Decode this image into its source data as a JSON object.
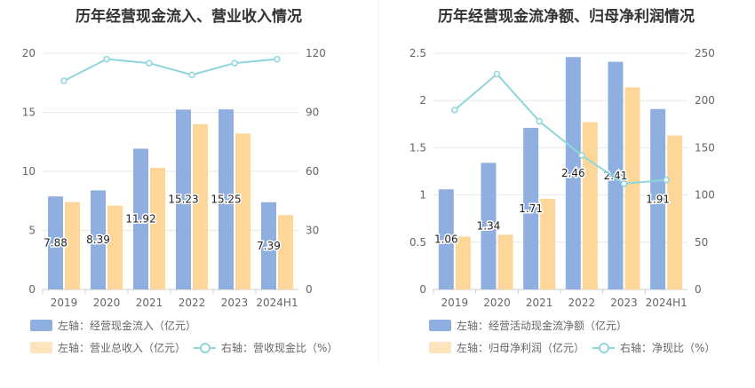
{
  "colors": {
    "bar1": "#8eafe0",
    "bar2": "#fdd79a",
    "line": "#8fd6dc",
    "grid": "#e8e8e8"
  },
  "chart_data": [
    {
      "type": "bar",
      "title": "历年经营现金流入、营业收入情况",
      "categories": [
        "2019",
        "2020",
        "2021",
        "2022",
        "2023",
        "2024H1"
      ],
      "series": [
        {
          "name": "左轴：经营现金流入（亿元）",
          "axis": "left",
          "type": "bar",
          "values": [
            7.88,
            8.39,
            11.92,
            15.23,
            15.25,
            7.39
          ],
          "labels": [
            "7.88",
            "8.39",
            "11.92",
            "15.23",
            "15.25",
            "7.39"
          ]
        },
        {
          "name": "左轴：营业总收入（亿元）",
          "axis": "left",
          "type": "bar",
          "values": [
            7.4,
            7.1,
            10.3,
            14.0,
            13.2,
            6.3
          ]
        },
        {
          "name": "右轴：营收现金比（%）",
          "axis": "right",
          "type": "line",
          "values": [
            106,
            117,
            115,
            109,
            115,
            117
          ]
        }
      ],
      "left_axis": {
        "min": 0,
        "max": 20,
        "ticks": [
          "0",
          "5",
          "10",
          "15",
          "20"
        ]
      },
      "right_axis": {
        "min": 0,
        "max": 120,
        "ticks": [
          "0",
          "30",
          "60",
          "90",
          "120"
        ]
      },
      "grid": true,
      "legend": "bottom"
    },
    {
      "type": "bar",
      "title": "历年经营现金流净额、归母净利润情况",
      "categories": [
        "2019",
        "2020",
        "2021",
        "2022",
        "2023",
        "2024H1"
      ],
      "series": [
        {
          "name": "左轴：经营活动现金流净额（亿元）",
          "axis": "left",
          "type": "bar",
          "values": [
            1.06,
            1.34,
            1.71,
            2.46,
            2.41,
            1.91
          ],
          "labels": [
            "1.06",
            "1.34",
            "1.71",
            "2.46",
            "2.41",
            "1.91"
          ]
        },
        {
          "name": "左轴：归母净利润（亿元）",
          "axis": "left",
          "type": "bar",
          "values": [
            0.56,
            0.58,
            0.96,
            1.77,
            2.14,
            1.63
          ]
        },
        {
          "name": "右轴：净现比（%）",
          "axis": "right",
          "type": "line",
          "values": [
            190,
            228,
            178,
            142,
            112,
            116
          ]
        }
      ],
      "left_axis": {
        "min": 0,
        "max": 2.5,
        "ticks": [
          "0",
          "0.5",
          "1",
          "1.5",
          "2",
          "2.5"
        ]
      },
      "right_axis": {
        "min": 0,
        "max": 250,
        "ticks": [
          "0",
          "50",
          "100",
          "150",
          "200",
          "250"
        ]
      },
      "grid": true,
      "legend": "bottom"
    }
  ]
}
